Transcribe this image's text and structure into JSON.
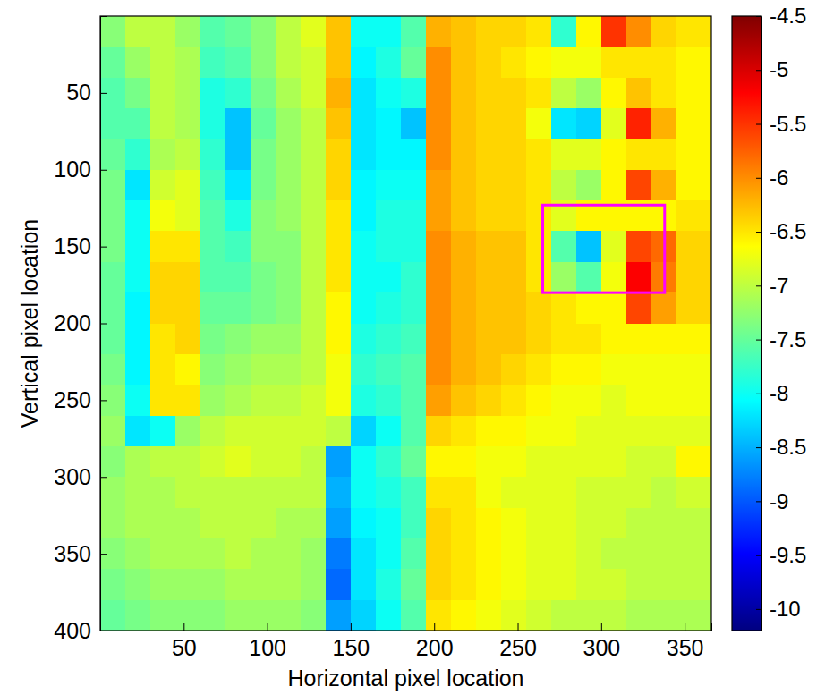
{
  "chart_data": {
    "type": "heatmap",
    "x_label": "Horizontal pixel location",
    "y_label": "Vertical pixel location",
    "xlim": [
      0,
      366
    ],
    "ylim": [
      0,
      400
    ],
    "xticks": [
      50,
      100,
      150,
      200,
      250,
      300,
      350
    ],
    "yticks": [
      50,
      100,
      150,
      200,
      250,
      300,
      350,
      400
    ],
    "x_edges": [
      0,
      15,
      30,
      45,
      60,
      75,
      90,
      105,
      120,
      135,
      150,
      165,
      180,
      195,
      210,
      225,
      240,
      255,
      270,
      285,
      300,
      315,
      330,
      345,
      366
    ],
    "y_edges": [
      0,
      20,
      40,
      60,
      80,
      100,
      120,
      140,
      160,
      180,
      200,
      220,
      240,
      260,
      280,
      300,
      320,
      340,
      360,
      380,
      400
    ],
    "z": [
      [
        -7.3,
        -7.0,
        -7.0,
        -7.2,
        -7.6,
        -7.5,
        -7.3,
        -7.0,
        -6.8,
        -6.3,
        -8.0,
        -8.0,
        -7.6,
        -6.2,
        -6.3,
        -6.4,
        -6.4,
        -6.5,
        -7.8,
        -6.6,
        -5.5,
        -6.0,
        -6.4,
        -6.5
      ],
      [
        -7.5,
        -7.2,
        -7.0,
        -7.1,
        -7.7,
        -7.6,
        -7.3,
        -7.0,
        -6.9,
        -6.3,
        -8.1,
        -7.9,
        -7.5,
        -6.0,
        -6.3,
        -6.4,
        -6.5,
        -6.6,
        -6.7,
        -6.7,
        -6.5,
        -6.5,
        -6.5,
        -6.6
      ],
      [
        -7.6,
        -7.4,
        -7.0,
        -7.1,
        -7.9,
        -7.8,
        -7.4,
        -7.1,
        -6.9,
        -6.2,
        -8.2,
        -8.0,
        -7.9,
        -6.0,
        -6.3,
        -6.4,
        -6.4,
        -6.5,
        -7.0,
        -7.2,
        -6.6,
        -6.3,
        -6.5,
        -6.6
      ],
      [
        -7.6,
        -7.6,
        -7.0,
        -7.1,
        -7.9,
        -8.4,
        -7.5,
        -7.2,
        -7.0,
        -6.3,
        -8.2,
        -8.1,
        -8.4,
        -6.0,
        -6.3,
        -6.4,
        -6.4,
        -6.7,
        -8.2,
        -8.3,
        -6.8,
        -5.4,
        -6.2,
        -6.6
      ],
      [
        -7.5,
        -7.8,
        -7.1,
        -7.0,
        -7.8,
        -8.4,
        -7.4,
        -7.2,
        -7.0,
        -6.4,
        -8.2,
        -8.1,
        -8.1,
        -6.0,
        -6.3,
        -6.4,
        -6.4,
        -6.5,
        -6.8,
        -6.8,
        -6.6,
        -6.5,
        -6.5,
        -6.6
      ],
      [
        -7.4,
        -8.2,
        -6.9,
        -6.8,
        -7.7,
        -8.2,
        -7.4,
        -7.2,
        -7.0,
        -6.4,
        -8.1,
        -8.0,
        -8.0,
        -6.1,
        -6.3,
        -6.4,
        -6.4,
        -6.5,
        -7.0,
        -7.2,
        -6.6,
        -5.6,
        -6.2,
        -6.6
      ],
      [
        -7.4,
        -8.0,
        -6.7,
        -6.8,
        -7.6,
        -7.9,
        -7.3,
        -7.2,
        -7.0,
        -6.5,
        -8.1,
        -7.9,
        -7.9,
        -6.1,
        -6.3,
        -6.4,
        -6.4,
        -6.5,
        -6.8,
        -6.6,
        -6.6,
        -6.6,
        -6.6,
        -6.5
      ],
      [
        -7.4,
        -8.0,
        -6.5,
        -6.5,
        -7.6,
        -7.7,
        -7.3,
        -7.3,
        -7.0,
        -6.5,
        -8.0,
        -7.9,
        -7.9,
        -6.0,
        -6.2,
        -6.3,
        -6.3,
        -6.5,
        -7.6,
        -8.4,
        -6.8,
        -5.6,
        -5.8,
        -6.4
      ],
      [
        -7.5,
        -8.0,
        -6.4,
        -6.4,
        -7.6,
        -7.6,
        -7.4,
        -7.3,
        -7.0,
        -6.5,
        -8.0,
        -8.0,
        -7.8,
        -6.0,
        -6.2,
        -6.3,
        -6.3,
        -6.5,
        -7.2,
        -7.6,
        -6.7,
        -5.2,
        -5.9,
        -6.4
      ],
      [
        -7.5,
        -8.1,
        -6.4,
        -6.4,
        -7.5,
        -7.5,
        -7.4,
        -7.3,
        -7.0,
        -6.6,
        -8.0,
        -7.9,
        -7.8,
        -6.0,
        -6.2,
        -6.3,
        -6.3,
        -6.4,
        -6.5,
        -6.6,
        -6.6,
        -5.6,
        -6.1,
        -6.4
      ],
      [
        -7.5,
        -8.1,
        -6.5,
        -6.4,
        -7.4,
        -7.3,
        -7.2,
        -7.2,
        -7.0,
        -6.6,
        -7.9,
        -7.8,
        -7.7,
        -6.0,
        -6.2,
        -6.3,
        -6.3,
        -6.4,
        -6.5,
        -6.5,
        -6.6,
        -6.6,
        -6.6,
        -6.6
      ],
      [
        -7.4,
        -8.1,
        -6.5,
        -6.6,
        -7.3,
        -7.2,
        -7.1,
        -7.1,
        -7.0,
        -6.7,
        -7.8,
        -7.7,
        -7.6,
        -6.0,
        -6.2,
        -6.3,
        -6.4,
        -6.5,
        -6.6,
        -6.6,
        -6.7,
        -6.7,
        -6.7,
        -6.7
      ],
      [
        -7.3,
        -8.0,
        -6.5,
        -6.5,
        -7.2,
        -7.1,
        -7.0,
        -7.0,
        -6.9,
        -6.7,
        -7.9,
        -7.8,
        -7.6,
        -6.1,
        -6.3,
        -6.4,
        -6.5,
        -6.6,
        -6.7,
        -6.7,
        -6.8,
        -6.7,
        -6.7,
        -6.7
      ],
      [
        -7.2,
        -8.2,
        -8.0,
        -7.2,
        -7.0,
        -6.9,
        -6.9,
        -6.9,
        -6.9,
        -7.0,
        -8.3,
        -8.0,
        -7.6,
        -6.4,
        -6.5,
        -6.6,
        -6.6,
        -6.7,
        -6.7,
        -6.8,
        -6.8,
        -6.8,
        -6.8,
        -6.8
      ],
      [
        -7.3,
        -7.1,
        -7.0,
        -7.0,
        -6.9,
        -6.8,
        -6.9,
        -6.9,
        -7.0,
        -8.6,
        -8.0,
        -7.8,
        -7.5,
        -6.6,
        -6.6,
        -6.7,
        -6.7,
        -6.8,
        -6.8,
        -6.8,
        -6.8,
        -6.9,
        -6.9,
        -6.6
      ],
      [
        -7.2,
        -7.1,
        -7.1,
        -7.0,
        -7.0,
        -7.0,
        -7.0,
        -7.0,
        -7.0,
        -8.5,
        -8.0,
        -7.9,
        -7.7,
        -6.5,
        -6.5,
        -6.7,
        -6.8,
        -6.8,
        -6.8,
        -6.9,
        -6.9,
        -6.9,
        -7.0,
        -6.9
      ],
      [
        -7.2,
        -7.1,
        -7.1,
        -7.1,
        -7.0,
        -7.0,
        -7.0,
        -7.1,
        -7.1,
        -8.6,
        -8.1,
        -8.0,
        -7.7,
        -6.4,
        -6.5,
        -6.6,
        -6.7,
        -6.8,
        -6.8,
        -6.9,
        -6.9,
        -7.0,
        -7.0,
        -7.0
      ],
      [
        -7.3,
        -7.2,
        -7.1,
        -7.1,
        -7.1,
        -7.0,
        -7.1,
        -7.1,
        -7.2,
        -8.8,
        -8.2,
        -8.0,
        -7.6,
        -6.4,
        -6.5,
        -6.6,
        -6.7,
        -6.8,
        -6.8,
        -6.9,
        -7.0,
        -7.0,
        -7.0,
        -7.0
      ],
      [
        -7.4,
        -7.3,
        -7.2,
        -7.2,
        -7.2,
        -7.1,
        -7.1,
        -7.1,
        -7.2,
        -8.9,
        -8.2,
        -7.9,
        -7.5,
        -6.4,
        -6.5,
        -6.6,
        -6.7,
        -6.8,
        -6.8,
        -6.9,
        -6.9,
        -7.0,
        -7.0,
        -7.0
      ],
      [
        -7.5,
        -7.4,
        -7.3,
        -7.3,
        -7.3,
        -7.2,
        -7.2,
        -7.2,
        -7.3,
        -8.6,
        -8.3,
        -8.0,
        -7.6,
        -6.5,
        -6.6,
        -6.7,
        -6.8,
        -6.9,
        -7.0,
        -7.0,
        -7.0,
        -7.1,
        -7.1,
        -7.1
      ]
    ],
    "colorbar": {
      "lim": [
        -10.2,
        -4.5
      ],
      "ticks": [
        -10,
        -9.5,
        -9,
        -8.5,
        -8,
        -7.5,
        -7,
        -6.5,
        -6,
        -5.5,
        -5,
        -4.5
      ]
    },
    "highlight": {
      "x": [
        265,
        338
      ],
      "y": [
        123,
        180
      ],
      "color": "#ff00ff"
    }
  }
}
